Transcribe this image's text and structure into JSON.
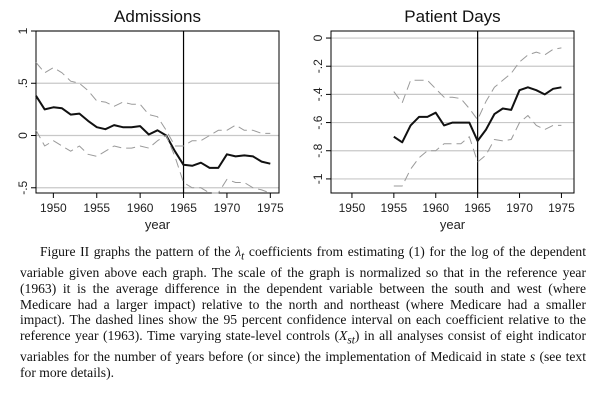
{
  "chart_data": [
    {
      "type": "line",
      "title": "Admissions",
      "xlabel": "year",
      "ylabel": "",
      "xlim": [
        1948,
        1976
      ],
      "ylim": [
        -0.55,
        1.0
      ],
      "xticks": [
        1950,
        1955,
        1960,
        1965,
        1970,
        1975
      ],
      "xtick_labels": [
        "1950",
        "1955",
        "1960",
        "1965",
        "1970",
        "1975"
      ],
      "yticks": [
        1,
        0.5,
        0,
        -0.5
      ],
      "ytick_labels": [
        "1",
        ".5",
        "0",
        "-.5"
      ],
      "grid": "horizontal",
      "reference_line_x": 1965,
      "x": [
        1948,
        1949,
        1950,
        1951,
        1952,
        1953,
        1954,
        1955,
        1956,
        1957,
        1958,
        1959,
        1960,
        1961,
        1962,
        1963,
        1964,
        1965,
        1966,
        1967,
        1968,
        1969,
        1970,
        1971,
        1972,
        1973,
        1974,
        1975
      ],
      "series": [
        {
          "style": "solid",
          "values": [
            0.38,
            0.25,
            0.27,
            0.26,
            0.2,
            0.21,
            0.14,
            0.08,
            0.06,
            0.1,
            0.08,
            0.08,
            0.09,
            0.01,
            0.05,
            0.0,
            -0.15,
            -0.28,
            -0.29,
            -0.26,
            -0.31,
            -0.31,
            -0.18,
            -0.2,
            -0.19,
            -0.2,
            -0.25,
            -0.27
          ]
        },
        {
          "style": "dashed",
          "values": [
            0.7,
            0.6,
            0.65,
            0.6,
            0.52,
            0.5,
            0.43,
            0.33,
            0.32,
            0.28,
            0.32,
            0.3,
            0.3,
            0.2,
            0.18,
            0.05,
            -0.1,
            -0.1,
            -0.05,
            -0.05,
            0.0,
            0.05,
            0.05,
            0.1,
            0.05,
            0.05,
            0.02,
            0.02
          ]
        },
        {
          "style": "dashed",
          "values": [
            0.05,
            -0.1,
            -0.05,
            -0.1,
            -0.15,
            -0.1,
            -0.18,
            -0.2,
            -0.15,
            -0.1,
            -0.12,
            -0.12,
            -0.1,
            -0.12,
            -0.05,
            0.0,
            -0.2,
            -0.45,
            -0.5,
            -0.5,
            -0.55,
            -0.55,
            -0.42,
            -0.45,
            -0.45,
            -0.5,
            -0.52,
            -0.55
          ]
        }
      ]
    },
    {
      "type": "line",
      "title": "Patient Days",
      "xlabel": "year",
      "ylabel": "",
      "xlim": [
        1947.5,
        1976.5
      ],
      "ylim": [
        -1.1,
        0.05
      ],
      "xticks": [
        1950,
        1955,
        1960,
        1965,
        1970,
        1975
      ],
      "xtick_labels": [
        "1950",
        "1955",
        "1960",
        "1965",
        "1970",
        "1975"
      ],
      "yticks": [
        0,
        -0.2,
        -0.4,
        -0.6,
        -0.8,
        -1
      ],
      "ytick_labels": [
        "0",
        "-.2",
        "-.4",
        "-.6",
        "-.8",
        "-1"
      ],
      "grid": "horizontal",
      "reference_line_x": 1965,
      "x": [
        1955,
        1956,
        1957,
        1958,
        1959,
        1960,
        1961,
        1962,
        1963,
        1964,
        1965,
        1966,
        1967,
        1968,
        1969,
        1970,
        1971,
        1972,
        1973,
        1974,
        1975
      ],
      "series": [
        {
          "style": "solid",
          "values": [
            -0.7,
            -0.74,
            -0.62,
            -0.56,
            -0.56,
            -0.53,
            -0.62,
            -0.6,
            -0.6,
            -0.6,
            -0.73,
            -0.65,
            -0.54,
            -0.5,
            -0.51,
            -0.37,
            -0.35,
            -0.37,
            -0.4,
            -0.36,
            -0.35
          ]
        },
        {
          "style": "dashed",
          "values": [
            -0.38,
            -0.46,
            -0.3,
            -0.3,
            -0.3,
            -0.36,
            -0.42,
            -0.42,
            -0.43,
            -0.5,
            -0.58,
            -0.45,
            -0.35,
            -0.3,
            -0.25,
            -0.17,
            -0.12,
            -0.1,
            -0.12,
            -0.08,
            -0.07
          ]
        },
        {
          "style": "dashed",
          "values": [
            -1.05,
            -1.05,
            -0.93,
            -0.85,
            -0.8,
            -0.8,
            -0.75,
            -0.75,
            -0.75,
            -0.7,
            -0.88,
            -0.83,
            -0.72,
            -0.73,
            -0.72,
            -0.6,
            -0.55,
            -0.62,
            -0.65,
            -0.62,
            -0.62
          ]
        }
      ]
    }
  ],
  "caption": {
    "before_lambda": "Figure II graphs the pattern of the ",
    "lambda": "λ",
    "lambda_sub": "t",
    "part2": " coefficients from estimating (1) for the log of the dependent variable given above each graph. The scale of the graph is normalized so that in the reference year (1963) it is the average difference in the dependent variable between the south and west (where Medicare had a larger impact) relative to the north and northeast (where Medicare had a smaller impact). The dashed lines show the 95 percent confidence interval on each coefficient relative to the reference year (1963). Time varying state-level controls (",
    "x": "X",
    "x_sub": "st",
    "part3": ") in all analyses consist of eight indicator variables for the number of years before (or since) the implementation of Medicaid in state ",
    "s": "s",
    "part4": " (see text for more details)."
  }
}
